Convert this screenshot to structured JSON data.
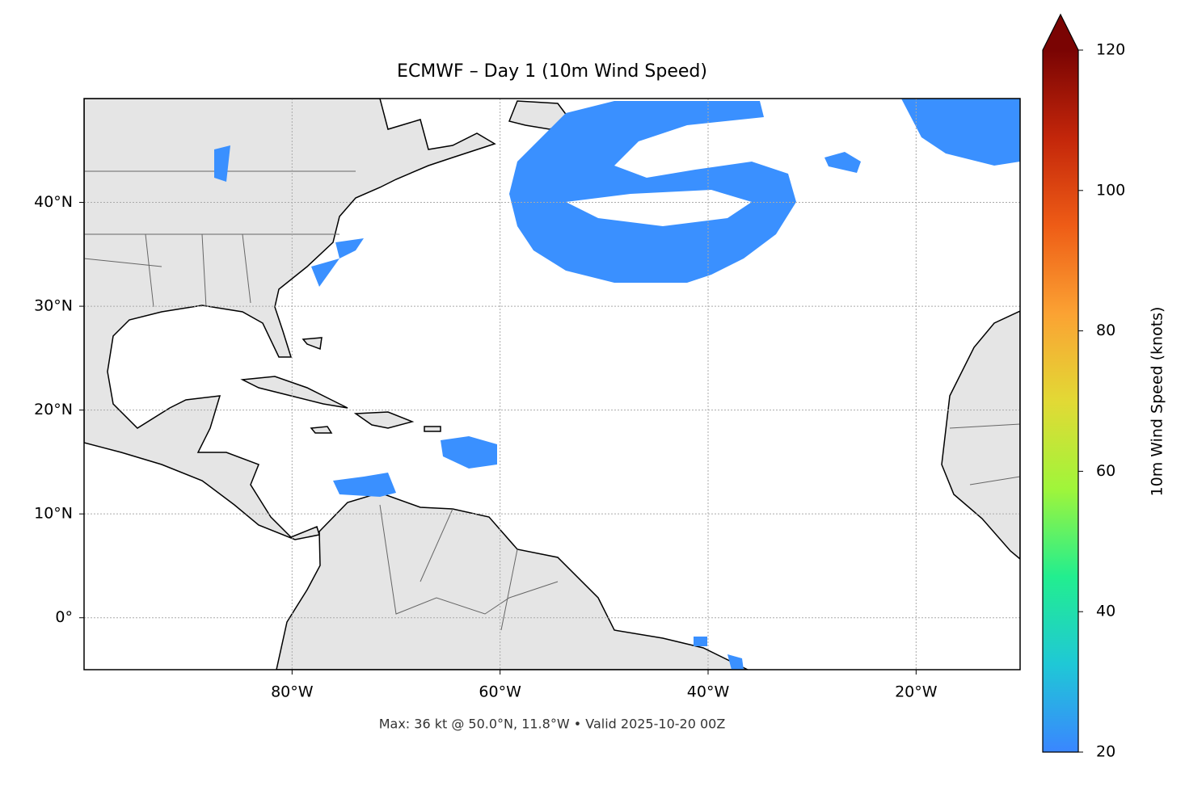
{
  "title": "ECMWF – Day 1 (10m Wind Speed)",
  "footer": "Max: 36 kt @ 50.0°N, 11.8°W • Valid 2025-10-20 00Z",
  "map": {
    "lonlim": [
      -100,
      -10
    ],
    "latlim": [
      -5,
      50
    ],
    "lon_ticks": [
      {
        "value": -80,
        "label": "80°W"
      },
      {
        "value": -60,
        "label": "60°W"
      },
      {
        "value": -40,
        "label": "40°W"
      },
      {
        "value": -20,
        "label": "20°W"
      }
    ],
    "lat_ticks": [
      {
        "value": 0,
        "label": "0°"
      },
      {
        "value": 10,
        "label": "10°N"
      },
      {
        "value": 20,
        "label": "20°N"
      },
      {
        "value": 30,
        "label": "30°N"
      },
      {
        "value": 40,
        "label": "40°N"
      }
    ],
    "grid": true
  },
  "colorbar": {
    "label": "10m Wind Speed (knots)",
    "lim": [
      20,
      120
    ],
    "ticks": [
      20,
      40,
      60,
      80,
      100,
      120
    ],
    "colors": [
      "#3a86ff",
      "#1fc8d6",
      "#22ee8f",
      "#a0f53a",
      "#e2d935",
      "#fba233",
      "#ee5c16",
      "#c3260a",
      "#7a0403"
    ]
  }
}
